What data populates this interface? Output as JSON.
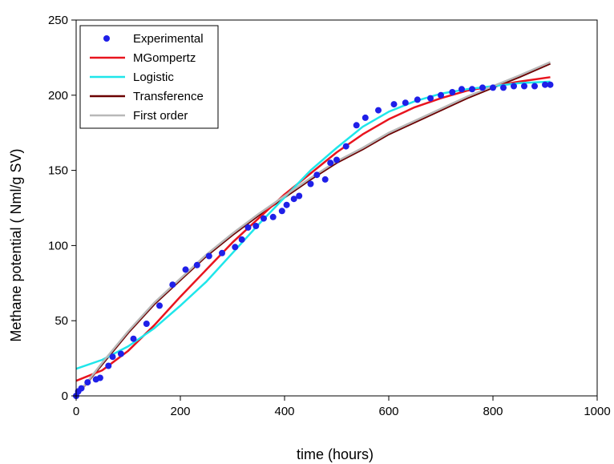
{
  "chart_data": {
    "type": "line",
    "title": "",
    "xlabel": "time (hours)",
    "ylabel": "Methane potential ( Nml/g SV)",
    "xlim": [
      0,
      1000
    ],
    "ylim": [
      0,
      250
    ],
    "xticks": [
      0,
      200,
      400,
      600,
      800,
      1000
    ],
    "yticks": [
      0,
      50,
      100,
      150,
      200,
      250
    ],
    "grid": false,
    "legend_position": "top-left",
    "colors": {
      "experimental": "#1f1fe8",
      "mgompertz": "#e8141e",
      "logistic": "#1fe6ea",
      "transference": "#6b0000",
      "first_order": "#b8b8b8"
    },
    "series": [
      {
        "name": "Experimental",
        "kind": "scatter",
        "color": "#1f1fe8",
        "x": [
          0,
          4,
          10,
          22,
          38,
          46,
          62,
          70,
          86,
          110,
          135,
          160,
          185,
          210,
          232,
          255,
          280,
          305,
          318,
          330,
          345,
          360,
          378,
          395,
          404,
          418,
          428,
          450,
          462,
          478,
          488,
          500,
          518,
          538,
          555,
          580,
          610,
          632,
          655,
          680,
          700,
          722,
          740,
          760,
          780,
          800,
          820,
          840,
          860,
          880,
          900,
          910
        ],
        "y": [
          0,
          3,
          5,
          9,
          11,
          12,
          20,
          26,
          28,
          38,
          48,
          60,
          74,
          84,
          87,
          93,
          95,
          99,
          104,
          112,
          113,
          118,
          119,
          123,
          127,
          131,
          133,
          141,
          147,
          144,
          155,
          157,
          166,
          180,
          185,
          190,
          194,
          195,
          197,
          198,
          200,
          202,
          204,
          204,
          205,
          205,
          205,
          206,
          206,
          206,
          207,
          207
        ]
      },
      {
        "name": "MGompertz",
        "kind": "line",
        "color": "#e8141e",
        "x": [
          0,
          50,
          100,
          150,
          200,
          250,
          300,
          350,
          400,
          450,
          500,
          550,
          600,
          650,
          700,
          750,
          800,
          850,
          910
        ],
        "y": [
          10,
          17,
          30,
          47,
          66,
          84,
          102,
          118,
          134,
          148,
          162,
          174,
          184,
          192,
          198,
          203,
          206,
          209,
          212
        ]
      },
      {
        "name": "Logistic",
        "kind": "line",
        "color": "#1fe6ea",
        "x": [
          0,
          50,
          100,
          150,
          200,
          250,
          300,
          350,
          400,
          450,
          500,
          550,
          600,
          650,
          700,
          750,
          800,
          850,
          910
        ],
        "y": [
          18,
          24,
          33,
          45,
          60,
          76,
          95,
          114,
          132,
          150,
          165,
          179,
          189,
          196,
          201,
          204,
          206,
          208,
          209
        ]
      },
      {
        "name": "Transference",
        "kind": "line",
        "color": "#6b0000",
        "x": [
          0,
          50,
          100,
          150,
          200,
          250,
          300,
          350,
          400,
          450,
          500,
          550,
          600,
          650,
          700,
          750,
          800,
          850,
          910
        ],
        "y": [
          0,
          21,
          42,
          61,
          77,
          93,
          107,
          120,
          132,
          144,
          155,
          164,
          174,
          182,
          190,
          198,
          205,
          212,
          221
        ]
      },
      {
        "name": "First order",
        "kind": "line",
        "color": "#b8b8b8",
        "x": [
          0,
          50,
          100,
          150,
          200,
          250,
          300,
          350,
          400,
          450,
          500,
          550,
          600,
          650,
          700,
          750,
          800,
          850,
          910
        ],
        "y": [
          0,
          22,
          43,
          62,
          78,
          94,
          108,
          121,
          133,
          145,
          156,
          165,
          175,
          183,
          191,
          199,
          206,
          213,
          222
        ]
      }
    ]
  }
}
